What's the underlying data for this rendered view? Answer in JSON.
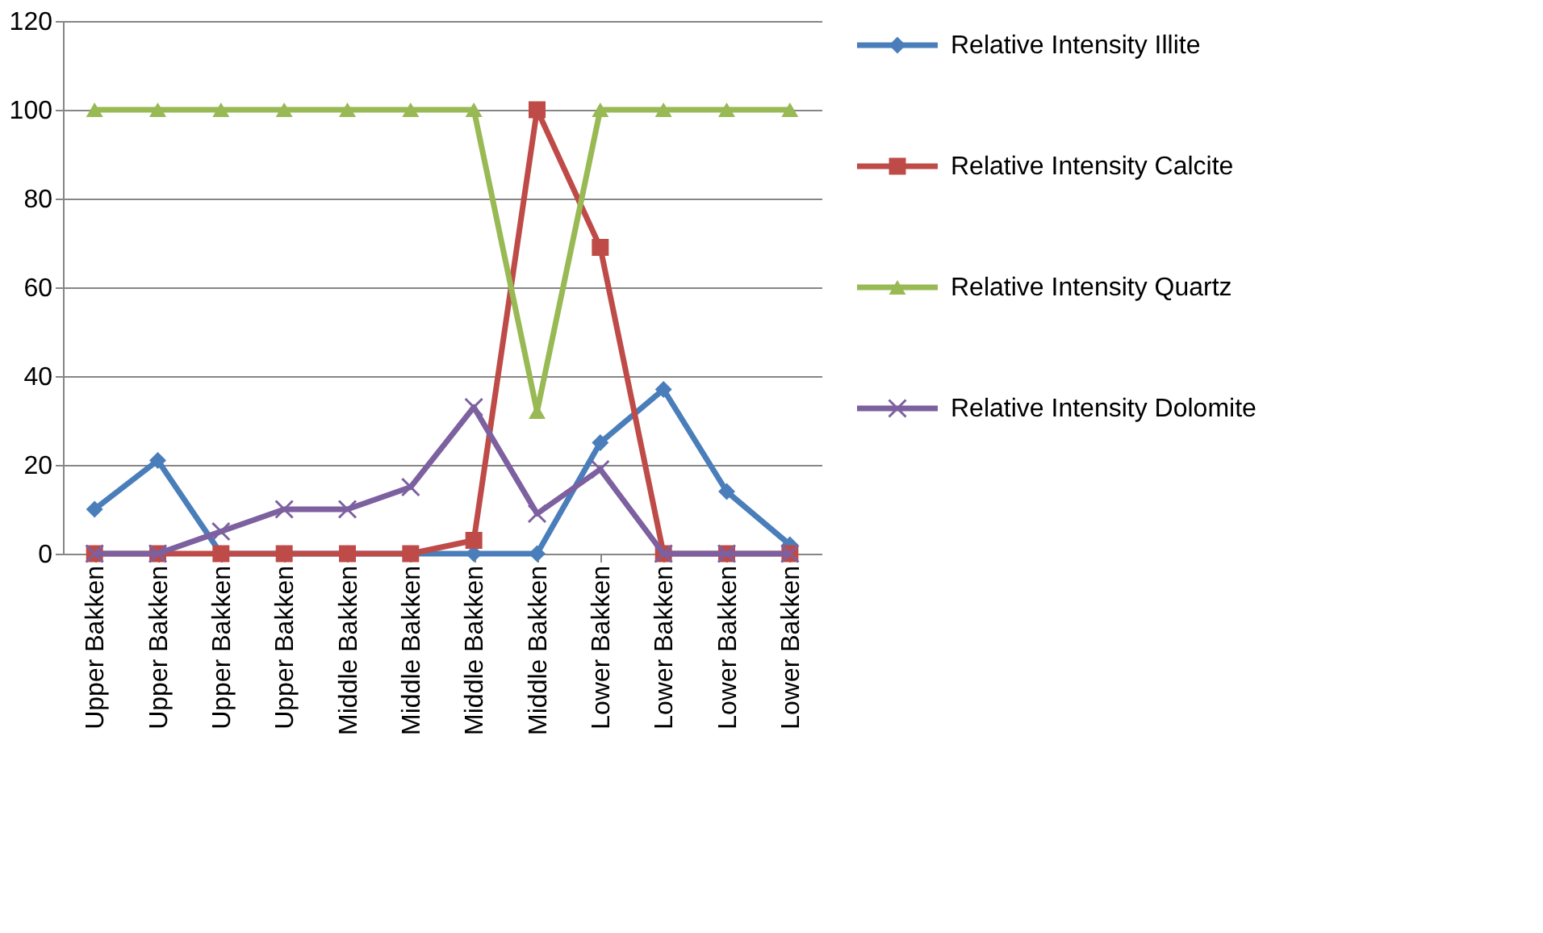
{
  "chart_data": {
    "type": "line",
    "categories": [
      "Upper Bakken",
      "Upper Bakken",
      "Upper Bakken",
      "Upper Bakken",
      "Middle Bakken",
      "Middle Bakken",
      "Middle Bakken",
      "Middle Bakken",
      "Lower Bakken",
      "Lower Bakken",
      "Lower Bakken",
      "Lower Bakken"
    ],
    "series": [
      {
        "name": "Relative Intensity Illite",
        "color": "#4a7ebb",
        "marker": "diamond",
        "values": [
          10,
          21,
          0,
          0,
          0,
          0,
          0,
          0,
          25,
          37,
          14,
          2
        ]
      },
      {
        "name": "Relative Intensity Calcite",
        "color": "#be4b48",
        "marker": "square",
        "values": [
          0,
          0,
          0,
          0,
          0,
          0,
          3,
          100,
          69,
          0,
          0,
          0
        ]
      },
      {
        "name": "Relative Intensity Quartz",
        "color": "#98b954",
        "marker": "triangle",
        "values": [
          100,
          100,
          100,
          100,
          100,
          100,
          100,
          32,
          100,
          100,
          100,
          100
        ]
      },
      {
        "name": "Relative Intensity Dolomite",
        "color": "#7d60a0",
        "marker": "cross",
        "values": [
          0,
          0,
          5,
          10,
          10,
          15,
          33,
          9,
          19,
          0,
          0,
          0
        ]
      }
    ],
    "ylim": [
      0,
      120
    ],
    "yticks": [
      0,
      20,
      40,
      60,
      80,
      100,
      120
    ],
    "grid": "y",
    "legend": "right",
    "line_style": "solid"
  }
}
